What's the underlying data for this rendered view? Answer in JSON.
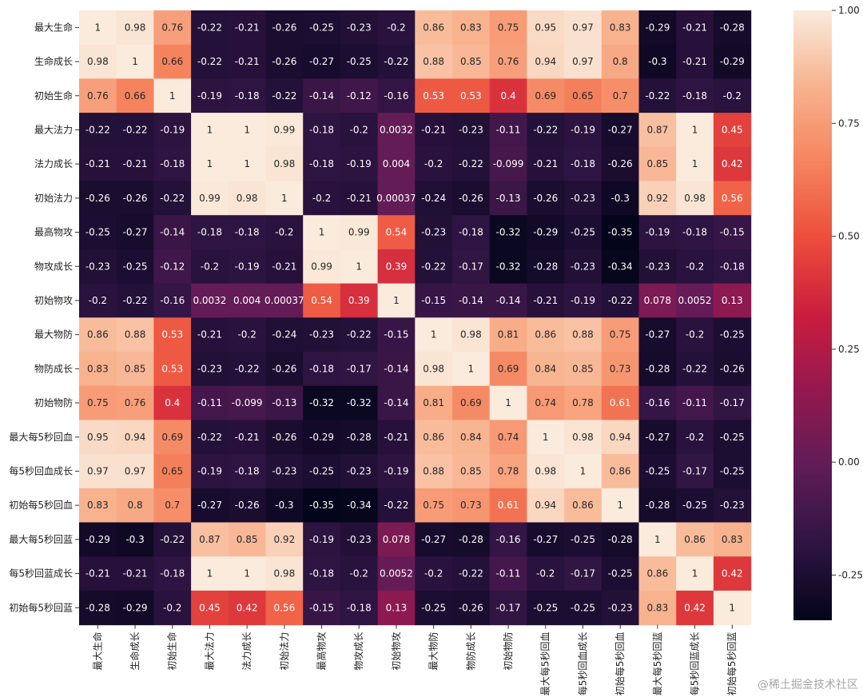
{
  "chart_data": {
    "type": "heatmap",
    "title": "",
    "xlabel": "",
    "ylabel": "",
    "labels": [
      "最大生命",
      "生命成长",
      "初始生命",
      "最大法力",
      "法力成长",
      "初始法力",
      "最高物攻",
      "物攻成长",
      "初始物攻",
      "最大物防",
      "物防成长",
      "初始物防",
      "最大每5秒回血",
      "每5秒回血成长",
      "初始每5秒回血",
      "最大每5秒回蓝",
      "每5秒回蓝成长",
      "初始每5秒回蓝"
    ],
    "cell_text": [
      [
        "1",
        "0.98",
        "0.76",
        "-0.22",
        "-0.21",
        "-0.26",
        "-0.25",
        "-0.23",
        "-0.2",
        "0.86",
        "0.83",
        "0.75",
        "0.95",
        "0.97",
        "0.83",
        "-0.29",
        "-0.21",
        "-0.28"
      ],
      [
        "0.98",
        "1",
        "0.66",
        "-0.22",
        "-0.21",
        "-0.26",
        "-0.27",
        "-0.25",
        "-0.22",
        "0.88",
        "0.85",
        "0.76",
        "0.94",
        "0.97",
        "0.8",
        "-0.3",
        "-0.21",
        "-0.29"
      ],
      [
        "0.76",
        "0.66",
        "1",
        "-0.19",
        "-0.18",
        "-0.22",
        "-0.14",
        "-0.12",
        "-0.16",
        "0.53",
        "0.53",
        "0.4",
        "0.69",
        "0.65",
        "0.7",
        "-0.22",
        "-0.18",
        "-0.2"
      ],
      [
        "-0.22",
        "-0.22",
        "-0.19",
        "1",
        "1",
        "0.99",
        "-0.18",
        "-0.2",
        "0.0032",
        "-0.21",
        "-0.23",
        "-0.11",
        "-0.22",
        "-0.19",
        "-0.27",
        "0.87",
        "1",
        "0.45"
      ],
      [
        "-0.21",
        "-0.21",
        "-0.18",
        "1",
        "1",
        "0.98",
        "-0.18",
        "-0.19",
        "0.004",
        "-0.2",
        "-0.22",
        "-0.099",
        "-0.21",
        "-0.18",
        "-0.26",
        "0.85",
        "1",
        "0.42"
      ],
      [
        "-0.26",
        "-0.26",
        "-0.22",
        "0.99",
        "0.98",
        "1",
        "-0.2",
        "-0.21",
        "0.00037",
        "-0.24",
        "-0.26",
        "-0.13",
        "-0.26",
        "-0.23",
        "-0.3",
        "0.92",
        "0.98",
        "0.56"
      ],
      [
        "-0.25",
        "-0.27",
        "-0.14",
        "-0.18",
        "-0.18",
        "-0.2",
        "1",
        "0.99",
        "0.54",
        "-0.23",
        "-0.18",
        "-0.32",
        "-0.29",
        "-0.25",
        "-0.35",
        "-0.19",
        "-0.18",
        "-0.15"
      ],
      [
        "-0.23",
        "-0.25",
        "-0.12",
        "-0.2",
        "-0.19",
        "-0.21",
        "0.99",
        "1",
        "0.39",
        "-0.22",
        "-0.17",
        "-0.32",
        "-0.28",
        "-0.23",
        "-0.34",
        "-0.23",
        "-0.2",
        "-0.18"
      ],
      [
        "-0.2",
        "-0.22",
        "-0.16",
        "0.0032",
        "0.004",
        "0.00037",
        "0.54",
        "0.39",
        "1",
        "-0.15",
        "-0.14",
        "-0.14",
        "-0.21",
        "-0.19",
        "-0.22",
        "0.078",
        "0.0052",
        "0.13"
      ],
      [
        "0.86",
        "0.88",
        "0.53",
        "-0.21",
        "-0.2",
        "-0.24",
        "-0.23",
        "-0.22",
        "-0.15",
        "1",
        "0.98",
        "0.81",
        "0.86",
        "0.88",
        "0.75",
        "-0.27",
        "-0.2",
        "-0.25"
      ],
      [
        "0.83",
        "0.85",
        "0.53",
        "-0.23",
        "-0.22",
        "-0.26",
        "-0.18",
        "-0.17",
        "-0.14",
        "0.98",
        "1",
        "0.69",
        "0.84",
        "0.85",
        "0.73",
        "-0.28",
        "-0.22",
        "-0.26"
      ],
      [
        "0.75",
        "0.76",
        "0.4",
        "-0.11",
        "-0.099",
        "-0.13",
        "-0.32",
        "-0.32",
        "-0.14",
        "0.81",
        "0.69",
        "1",
        "0.74",
        "0.78",
        "0.61",
        "-0.16",
        "-0.11",
        "-0.17"
      ],
      [
        "0.95",
        "0.94",
        "0.69",
        "-0.22",
        "-0.21",
        "-0.26",
        "-0.29",
        "-0.28",
        "-0.21",
        "0.86",
        "0.84",
        "0.74",
        "1",
        "0.98",
        "0.94",
        "-0.27",
        "-0.2",
        "-0.25"
      ],
      [
        "0.97",
        "0.97",
        "0.65",
        "-0.19",
        "-0.18",
        "-0.23",
        "-0.25",
        "-0.23",
        "-0.19",
        "0.88",
        "0.85",
        "0.78",
        "0.98",
        "1",
        "0.86",
        "-0.25",
        "-0.17",
        "-0.25"
      ],
      [
        "0.83",
        "0.8",
        "0.7",
        "-0.27",
        "-0.26",
        "-0.3",
        "-0.35",
        "-0.34",
        "-0.22",
        "0.75",
        "0.73",
        "0.61",
        "0.94",
        "0.86",
        "1",
        "-0.28",
        "-0.25",
        "-0.23"
      ],
      [
        "-0.29",
        "-0.3",
        "-0.22",
        "0.87",
        "0.85",
        "0.92",
        "-0.19",
        "-0.23",
        "0.078",
        "-0.27",
        "-0.28",
        "-0.16",
        "-0.27",
        "-0.25",
        "-0.28",
        "1",
        "0.86",
        "0.83"
      ],
      [
        "-0.21",
        "-0.21",
        "-0.18",
        "1",
        "1",
        "0.98",
        "-0.18",
        "-0.2",
        "0.0052",
        "-0.2",
        "-0.22",
        "-0.11",
        "-0.2",
        "-0.17",
        "-0.25",
        "0.86",
        "1",
        "0.42"
      ],
      [
        "-0.28",
        "-0.29",
        "-0.2",
        "0.45",
        "0.42",
        "0.56",
        "-0.15",
        "-0.18",
        "0.13",
        "-0.25",
        "-0.26",
        "-0.17",
        "-0.25",
        "-0.25",
        "-0.23",
        "0.83",
        "0.42",
        "1"
      ]
    ],
    "colorbar": {
      "min": -0.35,
      "max": 1.0,
      "ticks": [
        "1.00",
        "0.75",
        "0.50",
        "0.25",
        "0.00",
        "-0.25"
      ],
      "colormap": "rocket",
      "stops": [
        "#03051a",
        "#2e1442",
        "#5f1c57",
        "#94184f",
        "#c91d3e",
        "#ec4d3b",
        "#f5845e",
        "#f8b28e",
        "#faebdd"
      ]
    },
    "grid": false,
    "legend": "colorbar-right"
  },
  "watermark": "@稀土掘金技术社区"
}
